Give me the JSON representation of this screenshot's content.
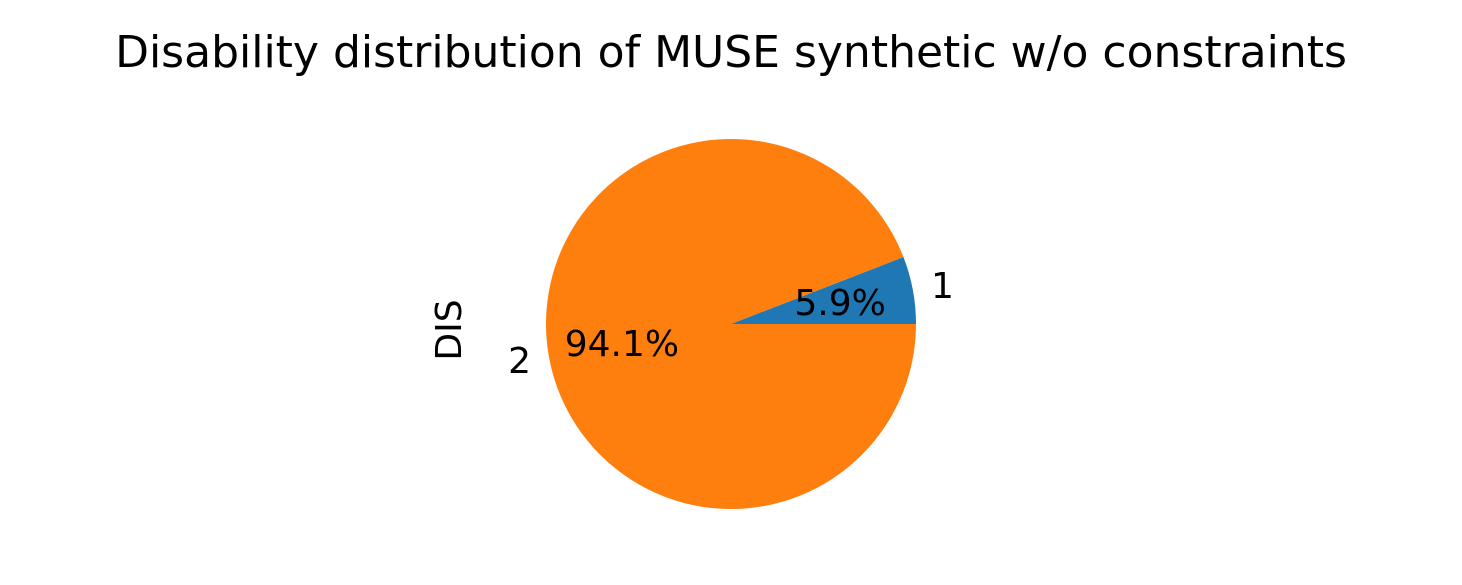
{
  "chart_data": {
    "type": "pie",
    "title": "Disability distribution of MUSE synthetic w/o constraints",
    "ylabel": "DIS",
    "start_angle_deg": 0,
    "direction": "counterclockwise",
    "slices": [
      {
        "label": "1",
        "value": 5.9,
        "pct_text": "5.9%",
        "color": "#1f77b4"
      },
      {
        "label": "2",
        "value": 94.1,
        "pct_text": "94.1%",
        "color": "#ff7f0e"
      }
    ]
  }
}
